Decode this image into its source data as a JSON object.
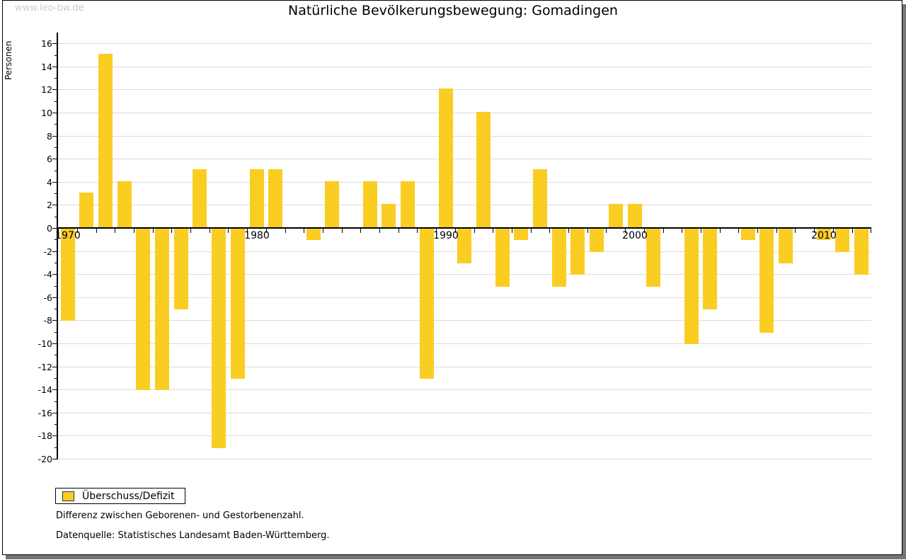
{
  "page": {
    "watermark": "www.leo-bw.de",
    "title": "Natürliche Bevölkerungsbewegung: Gomadingen",
    "footnote1": "Differenz zwischen Geborenen- und Gestorbenenzahl.",
    "footnote2": "Datenquelle: Statistisches Landesamt Baden-Württemberg."
  },
  "legend": {
    "label": "Überschuss/Defizit",
    "position": "bottom-left"
  },
  "colors": {
    "bar": "#FACD23",
    "grid": "#DBDBDB",
    "axis": "#000000",
    "watermark": "#CBCBCB",
    "frame_shadow": "#757575"
  },
  "chart_data": {
    "type": "bar",
    "title": "Natürliche Bevölkerungsbewegung: Gomadingen",
    "xlabel": "",
    "ylabel": "Personen",
    "ylim": [
      -20,
      16
    ],
    "ytick_step": 2,
    "grid": true,
    "x_major_ticks": [
      1970,
      1980,
      1990,
      2000,
      2010
    ],
    "series_name": "Überschuss/Defizit",
    "categories": [
      1970,
      1971,
      1972,
      1973,
      1974,
      1975,
      1976,
      1977,
      1978,
      1979,
      1980,
      1981,
      1982,
      1983,
      1984,
      1985,
      1986,
      1987,
      1988,
      1989,
      1990,
      1991,
      1992,
      1993,
      1994,
      1995,
      1996,
      1997,
      1998,
      1999,
      2000,
      2001,
      2002,
      2003,
      2004,
      2005,
      2006,
      2007,
      2008,
      2009,
      2010,
      2011,
      2012
    ],
    "values": [
      -8,
      3,
      15,
      4,
      -14,
      -14,
      -7,
      5,
      -19,
      -13,
      5,
      5,
      0,
      -1,
      4,
      0,
      4,
      2,
      4,
      -13,
      12,
      -3,
      10,
      -5,
      -1,
      5,
      -5,
      -4,
      -2,
      2,
      2,
      -5,
      0,
      -10,
      -7,
      0,
      -1,
      -9,
      -3,
      0,
      -1,
      -2,
      -4
    ]
  }
}
